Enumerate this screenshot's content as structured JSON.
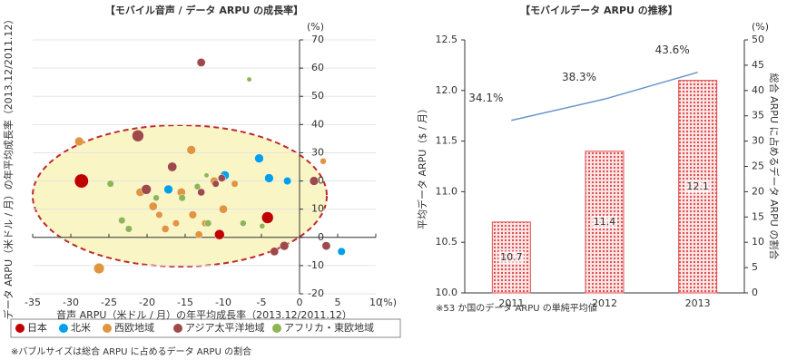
{
  "chart_data": [
    {
      "type": "bubble",
      "title": "【モバイル音声 / データ ARPU の成長率】",
      "x_label": "音声 ARPU（米ドル / 月）の年平均成長率（2013.12/2011.12）",
      "y_label": "データ ARPU（米ドル / 月）の年平均成長率（2013.12/2011.12）",
      "x_unit": "(%)",
      "y_unit": "(%)",
      "xlim": [
        -35,
        10
      ],
      "xticks": [
        -35,
        -30,
        -25,
        -20,
        -15,
        -10,
        -5,
        0,
        5,
        10
      ],
      "ylim": [
        -20,
        70
      ],
      "yticks": [
        -20,
        -10,
        0,
        10,
        20,
        30,
        40,
        50,
        60,
        70
      ],
      "grid": true,
      "note": "※バブルサイズは総合 ARPU に占めるデータ ARPU の割合",
      "series": [
        {
          "name": "日本",
          "color": "#c00000",
          "x": [
            -28.6,
            -10.5,
            -4.2
          ],
          "values": [
            20,
            1,
            7
          ],
          "sizes": [
            50,
            25,
            35
          ]
        },
        {
          "name": "北米",
          "color": "#00a0e9",
          "x": [
            -5.3,
            -9.8,
            -4,
            -1.6,
            -17.2,
            5.5
          ],
          "values": [
            28,
            22,
            21,
            20,
            17,
            -5
          ],
          "sizes": [
            20,
            20,
            20,
            15,
            20,
            15
          ]
        },
        {
          "name": "西欧地域",
          "color": "#e0953f",
          "x": [
            -28.9,
            -26.3,
            -14.2,
            3.1,
            -20.9,
            -19.2,
            -18.4,
            -17.6,
            -16.2,
            -15.5,
            -14,
            -13.2,
            -12.4,
            -11.2,
            -10,
            -8.5
          ],
          "values": [
            34,
            -11,
            31,
            27,
            16,
            11,
            8,
            3,
            5,
            16,
            8,
            1,
            5,
            20,
            10,
            19
          ],
          "sizes": [
            20,
            28,
            20,
            10,
            18,
            18,
            12,
            14,
            12,
            18,
            16,
            14,
            12,
            16,
            18,
            12
          ]
        },
        {
          "name": "アジア太平洋地域",
          "color": "#9e4a4a",
          "x": [
            -12.9,
            -21.2,
            -16.7,
            -20.1,
            -12.9,
            -10.2,
            -2,
            -3.3,
            1.9,
            3.5,
            -11
          ],
          "values": [
            62,
            36,
            25,
            17,
            16,
            21,
            -3,
            -5,
            20,
            -3,
            19
          ],
          "sizes": [
            18,
            35,
            22,
            25,
            14,
            14,
            20,
            18,
            20,
            18,
            12
          ]
        },
        {
          "name": "アフリカ・東欧地域",
          "color": "#8db554",
          "x": [
            -6.6,
            -24.8,
            -23.3,
            -22.4,
            -15.4,
            -13.4,
            -12.2,
            -12,
            -7.4,
            -4.9,
            -18.8
          ],
          "values": [
            56,
            19,
            6,
            3,
            14,
            18,
            22,
            5,
            5,
            4,
            14
          ],
          "sizes": [
            6,
            12,
            12,
            12,
            12,
            10,
            6,
            12,
            10,
            8,
            10
          ]
        }
      ]
    },
    {
      "type": "bar",
      "title": "【モバイルデータ ARPU の推移】",
      "y_label": "平均データ ARPU（$ / 月）",
      "y2_label": "総合 ARPU に占めるデータ ARPU の割合",
      "y2_unit": "(%)",
      "categories": [
        "2011",
        "2012",
        "2013"
      ],
      "ylim": [
        10,
        12.5
      ],
      "yticks": [
        {
          "value": 10,
          "label": "10.0"
        },
        10.5,
        {
          "value": 11,
          "label": "11.0"
        },
        11.5,
        {
          "value": 12,
          "label": "12.0"
        },
        12.5
      ],
      "y2lim": [
        0,
        50
      ],
      "y2ticks": [
        0,
        5,
        10,
        15,
        20,
        25,
        30,
        35,
        40,
        45,
        50
      ],
      "note": "※53 か国のデータ ARPU の単純平均値",
      "series": [
        {
          "type": "bar",
          "color": "#e05050",
          "values": [
            10.7,
            11.4,
            12.1
          ]
        },
        {
          "type": "line",
          "axis": "y2",
          "color": "#6a94cc",
          "values": [
            34.1,
            38.3,
            43.6
          ],
          "value_labels": [
            "34.1%",
            "38.3%",
            "43.6%"
          ]
        }
      ]
    }
  ]
}
